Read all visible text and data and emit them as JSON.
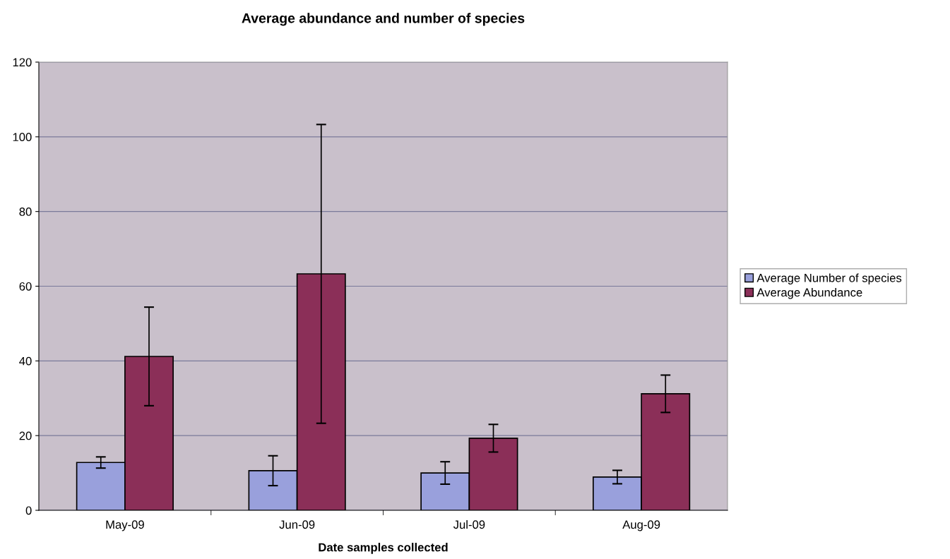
{
  "chart_data": {
    "type": "bar",
    "title": "Average abundance and number of species",
    "xlabel": "Date samples collected",
    "categories": [
      "May-09",
      "Jun-09",
      "Jul-09",
      "Aug-09"
    ],
    "series": [
      {
        "name": "Average Number of species",
        "color": "#99a0dc",
        "values": [
          12.8,
          10.6,
          10.0,
          8.9
        ],
        "errors": [
          1.5,
          4.0,
          3.0,
          1.8
        ]
      },
      {
        "name": "Average Abundance",
        "color": "#8b2f58",
        "values": [
          41.2,
          63.3,
          19.3,
          31.2
        ],
        "errors": [
          13.2,
          40.0,
          3.7,
          5.0
        ]
      }
    ],
    "ylim": [
      0,
      120
    ],
    "yticks": [
      0,
      20,
      40,
      60,
      80,
      100,
      120
    ],
    "grid": "y",
    "legend": "right"
  }
}
